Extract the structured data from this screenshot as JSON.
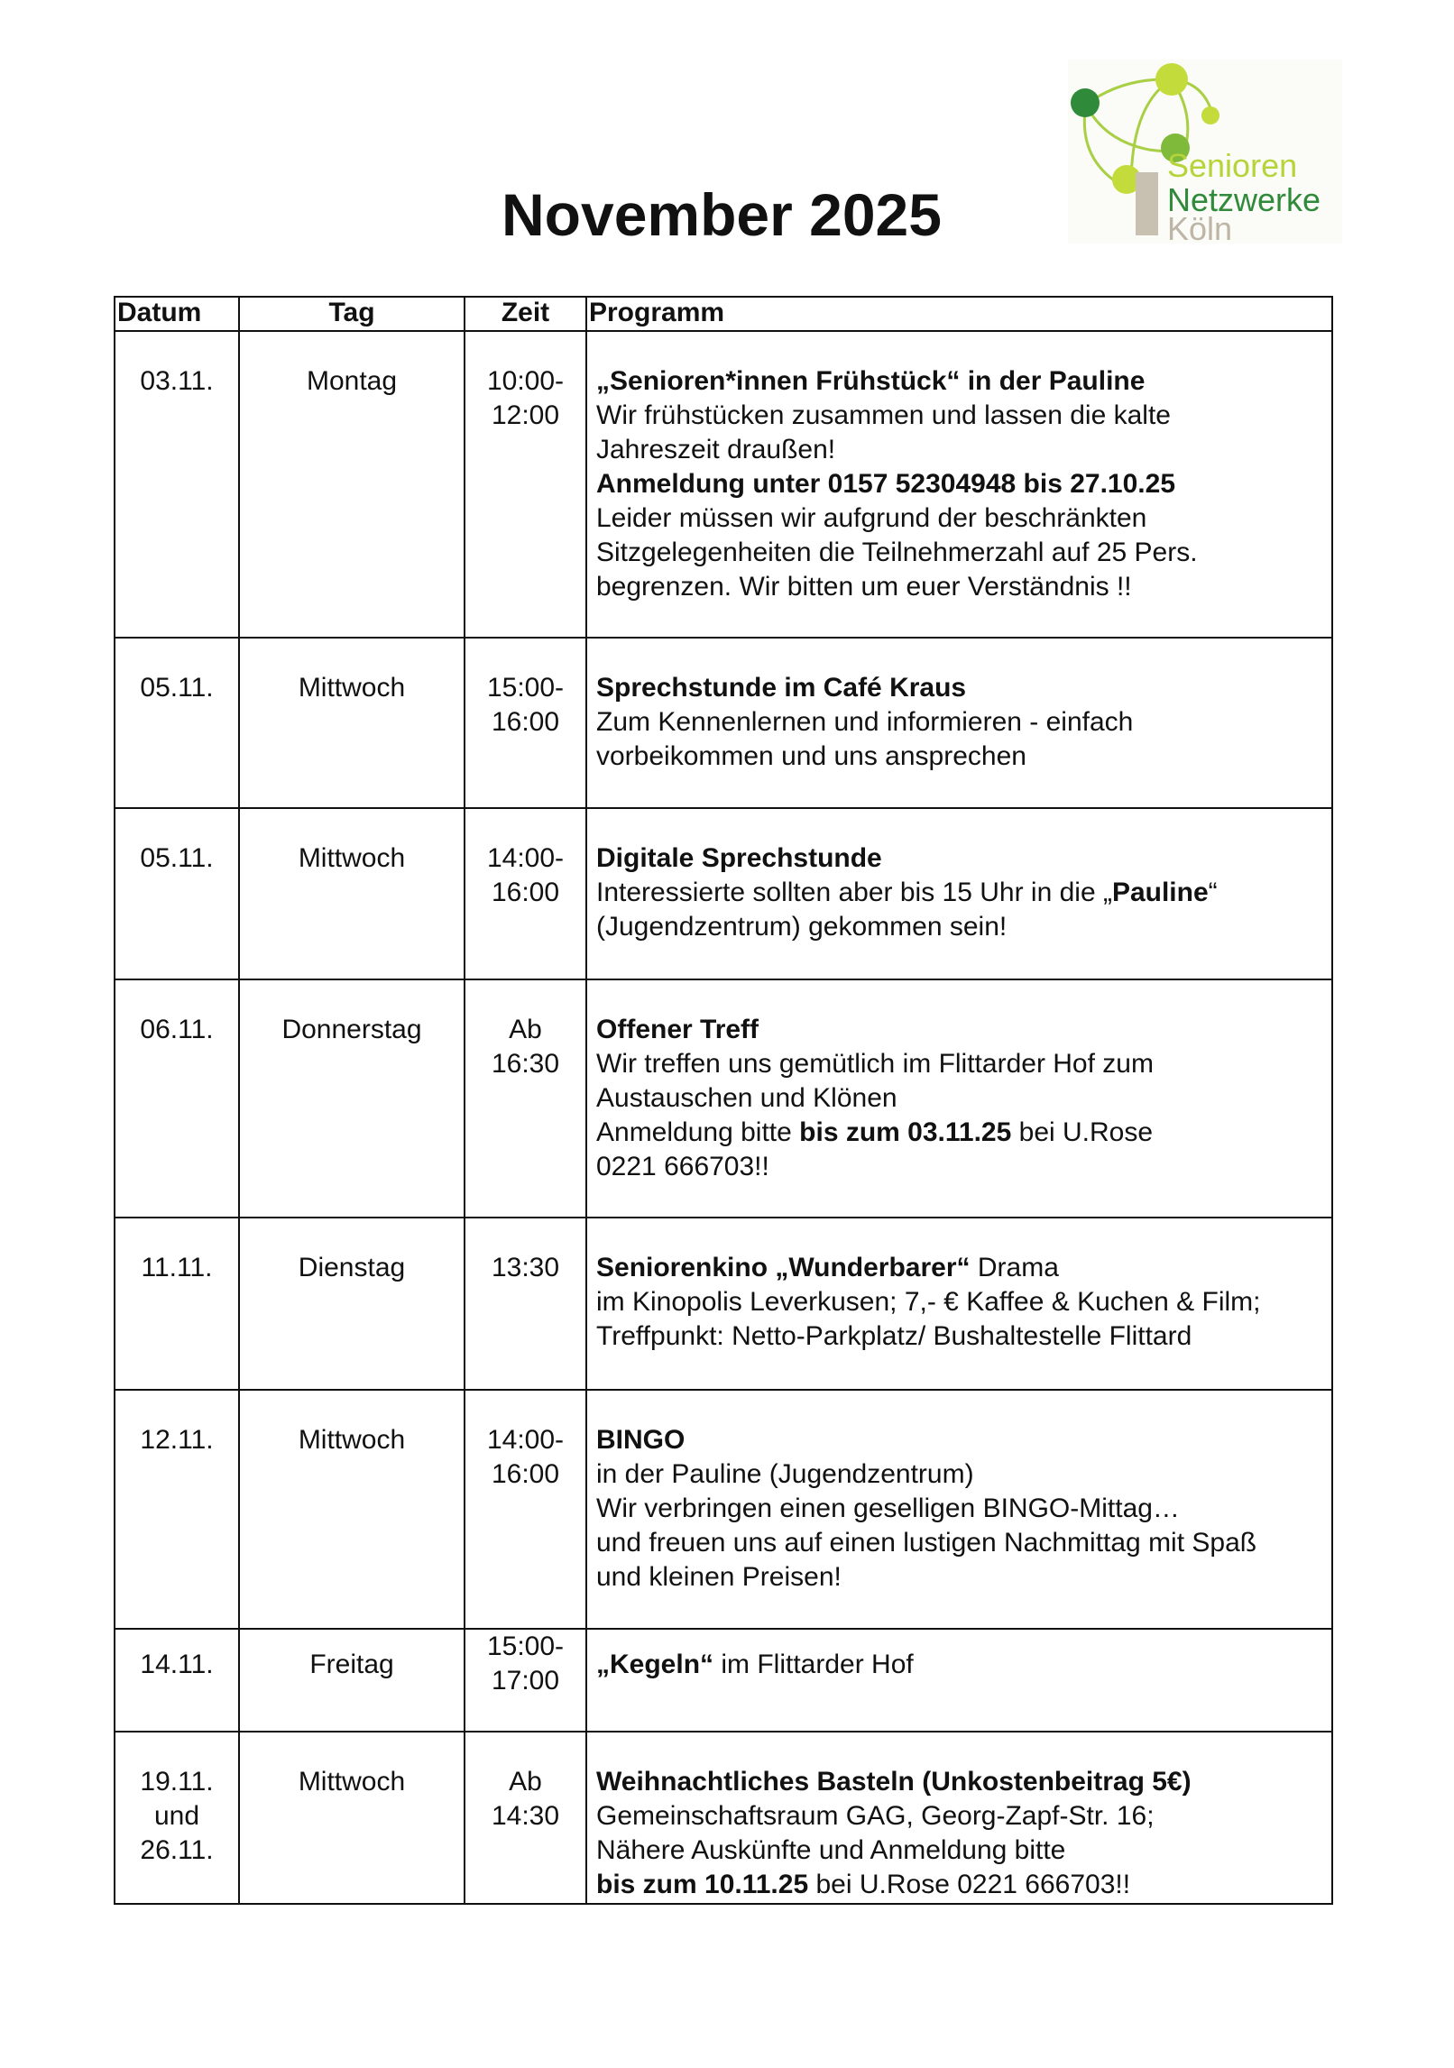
{
  "title": "November 2025",
  "logo": {
    "line1": "Senioren",
    "line2": "Netzwerke",
    "line3": "Köln",
    "colors": {
      "light": "#c3dc3c",
      "mid": "#7fba3a",
      "dark": "#2f8a3a",
      "grey": "#c8c0b0"
    }
  },
  "table": {
    "headers": [
      "Datum",
      "Tag",
      "Zeit",
      "Programm"
    ],
    "rows": [
      {
        "datum": [
          "03.11."
        ],
        "tag": "Montag",
        "zeit": [
          "10:00-",
          "12:00"
        ],
        "programm": [
          [
            {
              "t": "„Senioren*innen Frühstück“ in der Pauline",
              "b": true
            }
          ],
          [
            {
              "t": "Wir frühstücken zusammen und lassen die kalte"
            }
          ],
          [
            {
              "t": "Jahreszeit draußen!"
            }
          ],
          [
            {
              "t": "Anmeldung unter 0157 52304948 bis 27.10.25",
              "b": true
            }
          ],
          [
            {
              "t": "Leider müssen wir aufgrund der beschränkten"
            }
          ],
          [
            {
              "t": "Sitzgelegenheiten die Teilnehmerzahl auf 25 Pers."
            }
          ],
          [
            {
              "t": "begrenzen. Wir bitten um euer Verständnis !!"
            }
          ]
        ]
      },
      {
        "datum": [
          "05.11."
        ],
        "tag": "Mittwoch",
        "zeit": [
          "15:00-",
          "16:00"
        ],
        "programm": [
          [
            {
              "t": "Sprechstunde im Café Kraus",
              "b": true
            }
          ],
          [
            {
              "t": "Zum Kennenlernen und informieren - einfach"
            }
          ],
          [
            {
              "t": "vorbeikommen und uns ansprechen"
            }
          ]
        ]
      },
      {
        "datum": [
          "05.11."
        ],
        "tag": "Mittwoch",
        "zeit": [
          "14:00-",
          "16:00"
        ],
        "programm": [
          [
            {
              "t": "Digitale Sprechstunde",
              "b": true
            }
          ],
          [
            {
              "t": "Interessierte sollten aber bis 15 Uhr in die „"
            },
            {
              "t": "Pauline",
              "b": true
            },
            {
              "t": "“"
            }
          ],
          [
            {
              "t": "(Jugendzentrum) gekommen sein!"
            }
          ]
        ]
      },
      {
        "datum": [
          "06.11."
        ],
        "tag": "Donnerstag",
        "zeit": [
          "Ab",
          "16:30"
        ],
        "programm": [
          [
            {
              "t": "Offener Treff",
              "b": true
            }
          ],
          [
            {
              "t": "Wir treffen uns gemütlich im Flittarder Hof zum"
            }
          ],
          [
            {
              "t": "Austauschen und Klönen"
            }
          ],
          [
            {
              "t": "Anmeldung bitte "
            },
            {
              "t": "bis zum 03.11.25",
              "b": true
            },
            {
              "t": " bei U.Rose"
            }
          ],
          [
            {
              "t": "0221 666703!!"
            }
          ]
        ]
      },
      {
        "datum": [
          "11.11."
        ],
        "tag": "Dienstag",
        "zeit": [
          "13:30"
        ],
        "programm": [
          [
            {
              "t": "Seniorenkino „Wunderbarer“",
              "b": true
            },
            {
              "t": " Drama"
            }
          ],
          [
            {
              "t": "im Kinopolis Leverkusen; 7,- € Kaffee & Kuchen & Film;"
            }
          ],
          [
            {
              "t": "Treffpunkt: Netto-Parkplatz/ Bushaltestelle Flittard"
            }
          ]
        ]
      },
      {
        "datum": [
          "12.11."
        ],
        "tag": "Mittwoch",
        "zeit": [
          "14:00-",
          "16:00"
        ],
        "programm": [
          [
            {
              "t": "BINGO",
              "b": true
            }
          ],
          [
            {
              "t": "in der Pauline (Jugendzentrum)"
            }
          ],
          [
            {
              "t": "Wir verbringen einen geselligen BINGO-Mittag…"
            }
          ],
          [
            {
              "t": "und freuen uns auf einen lustigen Nachmittag mit Spaß"
            }
          ],
          [
            {
              "t": "und kleinen Preisen!"
            }
          ]
        ]
      },
      {
        "datum": [
          "14.11."
        ],
        "tag": "Freitag",
        "zeit": [
          "15:00-",
          "17:00"
        ],
        "programm": [
          [
            {
              "t": "„Kegeln“",
              "b": true
            },
            {
              "t": " im Flittarder Hof"
            }
          ]
        ]
      },
      {
        "datum": [
          "19.11.",
          "und",
          "26.11."
        ],
        "tag": "Mittwoch",
        "zeit": [
          "Ab",
          "14:30"
        ],
        "programm": [
          [
            {
              "t": "Weihnachtliches Basteln (Unkostenbeitrag 5€)",
              "b": true
            }
          ],
          [
            {
              "t": "Gemeinschaftsraum GAG, Georg-Zapf-Str. 16;"
            }
          ],
          [
            {
              "t": "Nähere Auskünfte und Anmeldung bitte"
            }
          ],
          [
            {
              "t": "bis zum 10.11.25",
              "b": true
            },
            {
              "t": " bei U.Rose 0221 666703!!"
            }
          ]
        ]
      }
    ]
  }
}
